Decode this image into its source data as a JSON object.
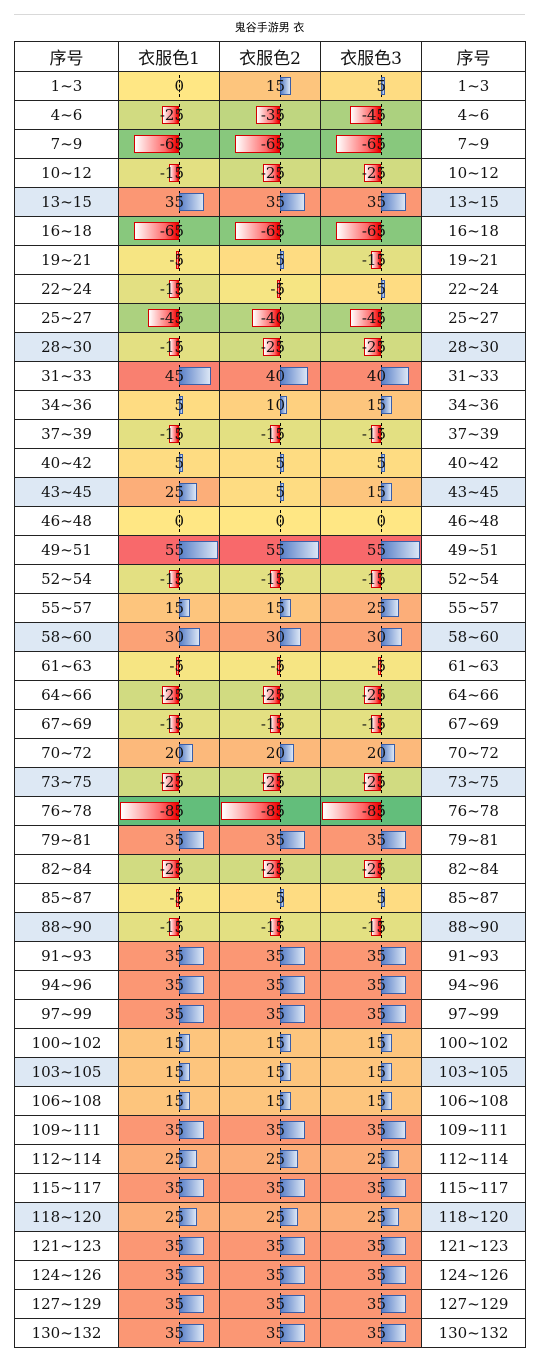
{
  "title": "鬼谷手游男 衣",
  "headers": [
    "序号",
    "衣服色1",
    "衣服色2",
    "衣服色3",
    "序号"
  ],
  "scale": {
    "min": -85,
    "max": 55
  },
  "colors": {
    "positive_bar": "#5a80c8",
    "negative_bar": "#f00000",
    "row_highlight": "#dde8f4",
    "scale_low": "#63be7b",
    "scale_mid": "#ffe784",
    "scale_high": "#f8696b"
  },
  "rows": [
    {
      "range": "1~3",
      "hl": false,
      "values": [
        0,
        15,
        5
      ]
    },
    {
      "range": "4~6",
      "hl": false,
      "values": [
        -25,
        -35,
        -45
      ]
    },
    {
      "range": "7~9",
      "hl": false,
      "values": [
        -65,
        -65,
        -65
      ]
    },
    {
      "range": "10~12",
      "hl": false,
      "values": [
        -15,
        -25,
        -25
      ]
    },
    {
      "range": "13~15",
      "hl": true,
      "values": [
        35,
        35,
        35
      ]
    },
    {
      "range": "16~18",
      "hl": false,
      "values": [
        -65,
        -65,
        -65
      ]
    },
    {
      "range": "19~21",
      "hl": false,
      "values": [
        -5,
        5,
        -15
      ]
    },
    {
      "range": "22~24",
      "hl": false,
      "values": [
        -15,
        -5,
        5
      ]
    },
    {
      "range": "25~27",
      "hl": false,
      "values": [
        -45,
        -40,
        -45
      ]
    },
    {
      "range": "28~30",
      "hl": true,
      "values": [
        -15,
        -25,
        -25
      ]
    },
    {
      "range": "31~33",
      "hl": false,
      "values": [
        45,
        40,
        40
      ]
    },
    {
      "range": "34~36",
      "hl": false,
      "values": [
        5,
        10,
        15
      ]
    },
    {
      "range": "37~39",
      "hl": false,
      "values": [
        -15,
        -15,
        -15
      ]
    },
    {
      "range": "40~42",
      "hl": false,
      "values": [
        5,
        5,
        5
      ]
    },
    {
      "range": "43~45",
      "hl": true,
      "values": [
        25,
        5,
        15
      ]
    },
    {
      "range": "46~48",
      "hl": false,
      "values": [
        0,
        0,
        0
      ]
    },
    {
      "range": "49~51",
      "hl": false,
      "values": [
        55,
        55,
        55
      ]
    },
    {
      "range": "52~54",
      "hl": false,
      "values": [
        -15,
        -15,
        -15
      ]
    },
    {
      "range": "55~57",
      "hl": false,
      "values": [
        15,
        15,
        25
      ]
    },
    {
      "range": "58~60",
      "hl": true,
      "values": [
        30,
        30,
        30
      ]
    },
    {
      "range": "61~63",
      "hl": false,
      "values": [
        -5,
        -5,
        -5
      ]
    },
    {
      "range": "64~66",
      "hl": false,
      "values": [
        -25,
        -25,
        -25
      ]
    },
    {
      "range": "67~69",
      "hl": false,
      "values": [
        -15,
        -15,
        -15
      ]
    },
    {
      "range": "70~72",
      "hl": false,
      "values": [
        20,
        20,
        20
      ]
    },
    {
      "range": "73~75",
      "hl": true,
      "values": [
        -25,
        -25,
        -25
      ]
    },
    {
      "range": "76~78",
      "hl": false,
      "values": [
        -85,
        -85,
        -85
      ]
    },
    {
      "range": "79~81",
      "hl": false,
      "values": [
        35,
        35,
        35
      ]
    },
    {
      "range": "82~84",
      "hl": false,
      "values": [
        -25,
        -25,
        -25
      ]
    },
    {
      "range": "85~87",
      "hl": false,
      "values": [
        -5,
        5,
        5
      ]
    },
    {
      "range": "88~90",
      "hl": true,
      "values": [
        -15,
        -15,
        -15
      ]
    },
    {
      "range": "91~93",
      "hl": false,
      "values": [
        35,
        35,
        35
      ]
    },
    {
      "range": "94~96",
      "hl": false,
      "values": [
        35,
        35,
        35
      ]
    },
    {
      "range": "97~99",
      "hl": false,
      "values": [
        35,
        35,
        35
      ]
    },
    {
      "range": "100~102",
      "hl": false,
      "values": [
        15,
        15,
        15
      ]
    },
    {
      "range": "103~105",
      "hl": true,
      "values": [
        15,
        15,
        15
      ]
    },
    {
      "range": "106~108",
      "hl": false,
      "values": [
        15,
        15,
        15
      ]
    },
    {
      "range": "109~111",
      "hl": false,
      "values": [
        35,
        35,
        35
      ]
    },
    {
      "range": "112~114",
      "hl": false,
      "values": [
        25,
        25,
        25
      ]
    },
    {
      "range": "115~117",
      "hl": false,
      "values": [
        35,
        35,
        35
      ]
    },
    {
      "range": "118~120",
      "hl": true,
      "values": [
        25,
        25,
        25
      ]
    },
    {
      "range": "121~123",
      "hl": false,
      "values": [
        35,
        35,
        35
      ]
    },
    {
      "range": "124~126",
      "hl": false,
      "values": [
        35,
        35,
        35
      ]
    },
    {
      "range": "127~129",
      "hl": false,
      "values": [
        35,
        35,
        35
      ]
    },
    {
      "range": "130~132",
      "hl": false,
      "values": [
        35,
        35,
        35
      ]
    }
  ]
}
